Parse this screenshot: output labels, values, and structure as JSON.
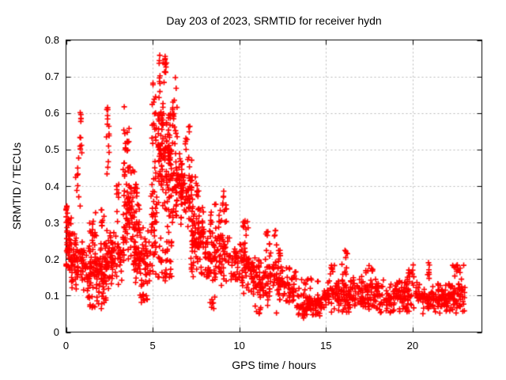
{
  "page": {
    "background": "#ffffff"
  },
  "chart_data": {
    "type": "scatter",
    "title": "Day 203 of 2023, SRMTID for receiver hydn",
    "xlabel": "GPS time / hours",
    "ylabel": "SRMTID / TECUs",
    "xlim": [
      0,
      24
    ],
    "ylim": [
      0,
      0.8
    ],
    "xticks": {
      "values": [
        0,
        5,
        10,
        15,
        20
      ],
      "labels": [
        "0",
        "5",
        "10",
        "15",
        "20"
      ]
    },
    "yticks": {
      "values": [
        0,
        0.1,
        0.2,
        0.3,
        0.4,
        0.5,
        0.6,
        0.7,
        0.8
      ],
      "labels": [
        "0",
        "0.1",
        "0.2",
        "0.3",
        "0.4",
        "0.5",
        "0.6",
        "0.7",
        "0.8"
      ]
    },
    "grid": {
      "show": true,
      "style": "dashed",
      "dash": [
        2,
        3
      ],
      "color": "#b8b8b8"
    },
    "frame_color": "#000000",
    "tick_length": 6,
    "legend": "none",
    "series": [
      {
        "name": "SRMTID",
        "marker": {
          "shape": "plus",
          "color": "#ff0000",
          "size": 7,
          "stroke_width": 1.6
        },
        "x_data_range": [
          0.0,
          23.0
        ],
        "y_data_range": [
          0.035,
          0.758
        ],
        "notable_points": [
          [
            0.05,
            0.345
          ],
          [
            0.82,
            0.601
          ],
          [
            2.4,
            0.615
          ],
          [
            3.36,
            0.617
          ],
          [
            5.02,
            0.682
          ],
          [
            5.41,
            0.758
          ],
          [
            5.72,
            0.755
          ],
          [
            6.31,
            0.697
          ],
          [
            8.4,
            0.068
          ],
          [
            9.1,
            0.386
          ],
          [
            11.2,
            0.062
          ],
          [
            12.35,
            0.224
          ],
          [
            16.1,
            0.224
          ],
          [
            20.92,
            0.19
          ],
          [
            22.95,
            0.183
          ]
        ],
        "clusters": [
          {
            "x": [
              0.0,
              0.35
            ],
            "y": [
              0.14,
              0.35
            ],
            "n": 45,
            "d": "m"
          },
          {
            "x": [
              0.0,
              0.12
            ],
            "y": [
              0.28,
              0.35
            ],
            "n": 10,
            "d": "f"
          },
          {
            "x": [
              0.3,
              1.1
            ],
            "y": [
              0.1,
              0.28
            ],
            "n": 70,
            "d": "m"
          },
          {
            "x": [
              0.55,
              0.95
            ],
            "y": [
              0.33,
              0.5
            ],
            "n": 10,
            "d": "f"
          },
          {
            "x": [
              0.75,
              0.92
            ],
            "y": [
              0.5,
              0.6
            ],
            "n": 9,
            "d": "f"
          },
          {
            "x": [
              1.0,
              2.3
            ],
            "y": [
              0.09,
              0.26
            ],
            "n": 110,
            "d": "m"
          },
          {
            "x": [
              1.2,
              2.3
            ],
            "y": [
              0.05,
              0.1
            ],
            "n": 18,
            "d": "f"
          },
          {
            "x": [
              1.35,
              1.75
            ],
            "y": [
              0.26,
              0.33
            ],
            "n": 14,
            "d": "f"
          },
          {
            "x": [
              2.0,
              2.2
            ],
            "y": [
              0.27,
              0.34
            ],
            "n": 8,
            "d": "f"
          },
          {
            "x": [
              2.33,
              2.5
            ],
            "y": [
              0.42,
              0.62
            ],
            "n": 14,
            "d": "f"
          },
          {
            "x": [
              2.3,
              3.3
            ],
            "y": [
              0.11,
              0.3
            ],
            "n": 80,
            "d": "m"
          },
          {
            "x": [
              2.9,
              3.1
            ],
            "y": [
              0.3,
              0.44
            ],
            "n": 8,
            "d": "f"
          },
          {
            "x": [
              3.28,
              3.45
            ],
            "y": [
              0.42,
              0.62
            ],
            "n": 12,
            "d": "f"
          },
          {
            "x": [
              3.3,
              4.1
            ],
            "y": [
              0.18,
              0.48
            ],
            "n": 95,
            "d": "m"
          },
          {
            "x": [
              3.5,
              3.7
            ],
            "y": [
              0.48,
              0.57
            ],
            "n": 8,
            "d": "f"
          },
          {
            "x": [
              3.9,
              4.9
            ],
            "y": [
              0.1,
              0.32
            ],
            "n": 85,
            "d": "m"
          },
          {
            "x": [
              4.1,
              4.25
            ],
            "y": [
              0.27,
              0.35
            ],
            "n": 10,
            "d": "f"
          },
          {
            "x": [
              4.2,
              4.7
            ],
            "y": [
              0.07,
              0.11
            ],
            "n": 12,
            "d": "f"
          },
          {
            "x": [
              4.95,
              5.25
            ],
            "y": [
              0.5,
              0.685
            ],
            "n": 16,
            "d": "f"
          },
          {
            "x": [
              4.9,
              5.3
            ],
            "y": [
              0.15,
              0.5
            ],
            "n": 45,
            "d": "m"
          },
          {
            "x": [
              5.3,
              6.1
            ],
            "y": [
              0.3,
              0.68
            ],
            "n": 130,
            "d": "m"
          },
          {
            "x": [
              5.35,
              5.8
            ],
            "y": [
              0.68,
              0.758
            ],
            "n": 18,
            "d": "f"
          },
          {
            "x": [
              5.3,
              6.1
            ],
            "y": [
              0.12,
              0.3
            ],
            "n": 35,
            "d": "m"
          },
          {
            "x": [
              6.15,
              6.45
            ],
            "y": [
              0.5,
              0.695
            ],
            "n": 18,
            "d": "f"
          },
          {
            "x": [
              6.1,
              6.7
            ],
            "y": [
              0.28,
              0.55
            ],
            "n": 55,
            "d": "m"
          },
          {
            "x": [
              6.6,
              7.3
            ],
            "y": [
              0.28,
              0.5
            ],
            "n": 65,
            "d": "m"
          },
          {
            "x": [
              6.8,
              7.15
            ],
            "y": [
              0.5,
              0.565
            ],
            "n": 8,
            "d": "f"
          },
          {
            "x": [
              7.2,
              8.1
            ],
            "y": [
              0.14,
              0.36
            ],
            "n": 95,
            "d": "m"
          },
          {
            "x": [
              7.4,
              7.7
            ],
            "y": [
              0.36,
              0.425
            ],
            "n": 8,
            "d": "f"
          },
          {
            "x": [
              8.0,
              9.6
            ],
            "y": [
              0.12,
              0.3
            ],
            "n": 110,
            "d": "m"
          },
          {
            "x": [
              8.3,
              8.9
            ],
            "y": [
              0.28,
              0.35
            ],
            "n": 10,
            "d": "f"
          },
          {
            "x": [
              8.9,
              9.3
            ],
            "y": [
              0.3,
              0.385
            ],
            "n": 12,
            "d": "f"
          },
          {
            "x": [
              8.2,
              8.6
            ],
            "y": [
              0.06,
              0.1
            ],
            "n": 6,
            "d": "f"
          },
          {
            "x": [
              9.6,
              10.8
            ],
            "y": [
              0.1,
              0.26
            ],
            "n": 85,
            "d": "m"
          },
          {
            "x": [
              10.2,
              10.55
            ],
            "y": [
              0.26,
              0.305
            ],
            "n": 10,
            "d": "f"
          },
          {
            "x": [
              10.8,
              12.2
            ],
            "y": [
              0.08,
              0.22
            ],
            "n": 95,
            "d": "m"
          },
          {
            "x": [
              10.9,
              12.2
            ],
            "y": [
              0.05,
              0.08
            ],
            "n": 7,
            "d": "f"
          },
          {
            "x": [
              11.5,
              12.15
            ],
            "y": [
              0.22,
              0.28
            ],
            "n": 12,
            "d": "f"
          },
          {
            "x": [
              12.2,
              13.3
            ],
            "y": [
              0.07,
              0.19
            ],
            "n": 70,
            "d": "m"
          },
          {
            "x": [
              12.25,
              12.45
            ],
            "y": [
              0.19,
              0.225
            ],
            "n": 6,
            "d": "f"
          },
          {
            "x": [
              13.3,
              14.9
            ],
            "y": [
              0.035,
              0.11
            ],
            "n": 100,
            "d": "m"
          },
          {
            "x": [
              13.4,
              14.6
            ],
            "y": [
              0.11,
              0.155
            ],
            "n": 12,
            "d": "f"
          },
          {
            "x": [
              14.9,
              16.3
            ],
            "y": [
              0.05,
              0.155
            ],
            "n": 95,
            "d": "m"
          },
          {
            "x": [
              15.25,
              15.5
            ],
            "y": [
              0.155,
              0.19
            ],
            "n": 7,
            "d": "f"
          },
          {
            "x": [
              15.9,
              16.25
            ],
            "y": [
              0.155,
              0.225
            ],
            "n": 10,
            "d": "f"
          },
          {
            "x": [
              16.3,
              18.1
            ],
            "y": [
              0.05,
              0.16
            ],
            "n": 115,
            "d": "m"
          },
          {
            "x": [
              17.2,
              17.7
            ],
            "y": [
              0.16,
              0.19
            ],
            "n": 8,
            "d": "f"
          },
          {
            "x": [
              18.1,
              20.4
            ],
            "y": [
              0.045,
              0.15
            ],
            "n": 130,
            "d": "m"
          },
          {
            "x": [
              19.7,
              20.15
            ],
            "y": [
              0.15,
              0.19
            ],
            "n": 10,
            "d": "f"
          },
          {
            "x": [
              20.4,
              21.7
            ],
            "y": [
              0.05,
              0.14
            ],
            "n": 85,
            "d": "m"
          },
          {
            "x": [
              20.85,
              21.0
            ],
            "y": [
              0.14,
              0.19
            ],
            "n": 6,
            "d": "f"
          },
          {
            "x": [
              21.7,
              23.05
            ],
            "y": [
              0.05,
              0.15
            ],
            "n": 95,
            "d": "m"
          },
          {
            "x": [
              22.3,
              23.0
            ],
            "y": [
              0.15,
              0.185
            ],
            "n": 12,
            "d": "f"
          }
        ]
      }
    ]
  }
}
